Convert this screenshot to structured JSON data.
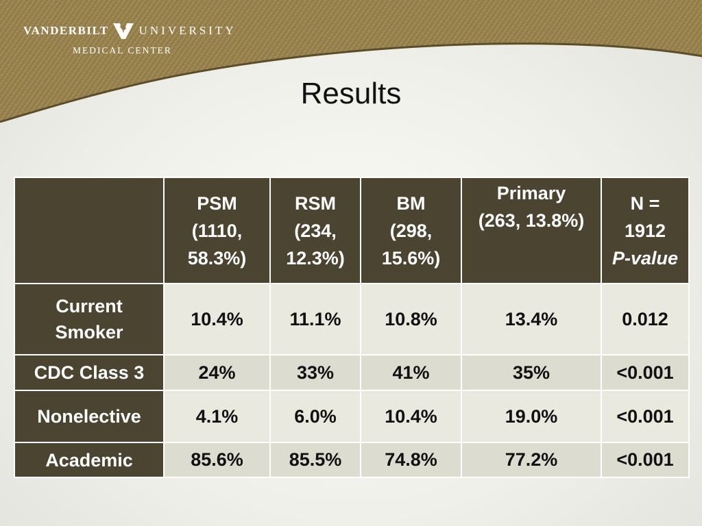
{
  "logo": {
    "word_left": "VANDERBILT",
    "word_right": "UNIVERSITY",
    "subtitle": "MEDICAL CENTER",
    "mark_icon": "vanderbilt-v-oak-leaf-icon"
  },
  "slide": {
    "title": "Results"
  },
  "colors": {
    "header_bg": "#4a4431",
    "banner_gold": "#9c8651",
    "banner_dark": "#6f5e34"
  },
  "table": {
    "columns": [
      {
        "lines": []
      },
      {
        "lines": [
          "PSM",
          "(1110,",
          "58.3%)"
        ]
      },
      {
        "lines": [
          "RSM",
          "(234,",
          "12.3%)"
        ]
      },
      {
        "lines": [
          "BM",
          "(298,",
          "15.6%)"
        ]
      },
      {
        "lines": [
          "Primary",
          "(263, 13.8%)"
        ]
      },
      {
        "lines": [
          "N =",
          "1912"
        ],
        "italic_line": "P-value"
      }
    ],
    "rows": [
      {
        "label_lines": [
          "Current",
          "Smoker"
        ],
        "values": [
          "10.4%",
          "11.1%",
          "10.8%",
          "13.4%",
          "0.012"
        ]
      },
      {
        "label_lines": [
          "CDC Class 3"
        ],
        "values": [
          "24%",
          "33%",
          "41%",
          "35%",
          "<0.001"
        ]
      },
      {
        "label_lines": [
          "Nonelective"
        ],
        "values": [
          "4.1%",
          "6.0%",
          "10.4%",
          "19.0%",
          "<0.001"
        ]
      },
      {
        "label_lines": [
          "Academic"
        ],
        "values": [
          "85.6%",
          "85.5%",
          "74.8%",
          "77.2%",
          "<0.001"
        ]
      }
    ]
  }
}
